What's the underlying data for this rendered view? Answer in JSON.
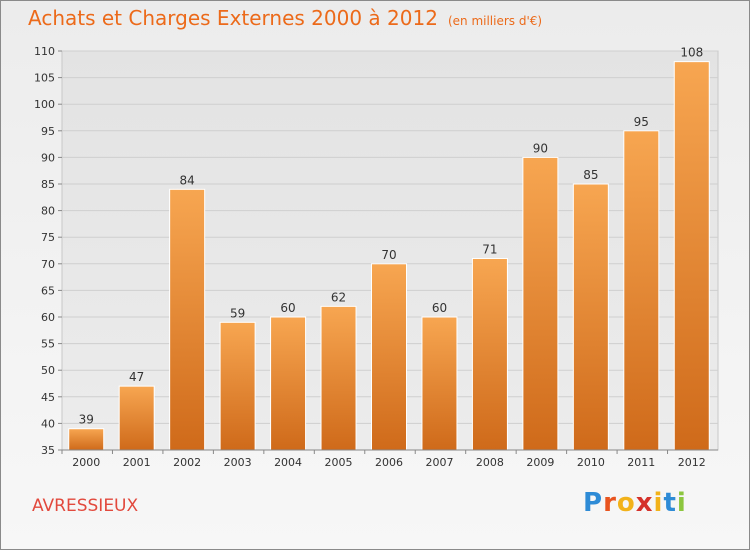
{
  "header": {
    "title": "Achats et Charges Externes 2000 à 2012",
    "unit": "(en milliers d'€)"
  },
  "footer": {
    "city": "AVRESSIEUX",
    "logo": "Proxiti"
  },
  "colors": {
    "bar_top": "#f7a651",
    "bar_bottom": "#cf6a1a",
    "title": "#ec6a1a",
    "city": "#e2493d"
  },
  "chart_data": {
    "type": "bar",
    "title": "Achats et Charges Externes 2000 à 2012",
    "subtitle": "(en milliers d'€)",
    "categories": [
      "2000",
      "2001",
      "2002",
      "2003",
      "2004",
      "2005",
      "2006",
      "2007",
      "2008",
      "2009",
      "2010",
      "2011",
      "2012"
    ],
    "values": [
      39,
      47,
      84,
      59,
      60,
      62,
      70,
      60,
      71,
      90,
      85,
      95,
      108
    ],
    "ylim": [
      35,
      110
    ],
    "yticks": [
      35,
      40,
      45,
      50,
      55,
      60,
      65,
      70,
      75,
      80,
      85,
      90,
      95,
      100,
      105,
      110
    ],
    "grid": "horizontal",
    "legend": "none"
  }
}
